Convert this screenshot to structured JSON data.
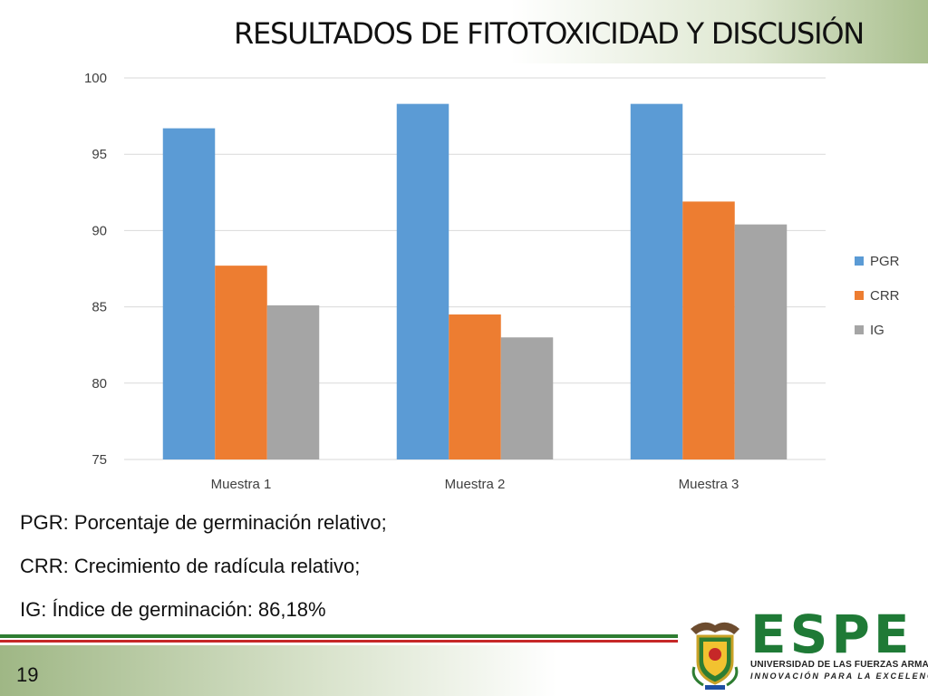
{
  "slide": {
    "title": "RESULTADOS DE FITOTOXICIDAD Y DISCUSIÓN",
    "page_number": "19"
  },
  "notes": [
    "PGR: Porcentaje de germinación relativo;",
    "CRR: Crecimiento de radícula relativo;",
    "IG: Índice de germinación: 86,18%"
  ],
  "logo": {
    "wordmark": "ESPE",
    "line1": "UNIVERSIDAD DE LAS FUERZAS ARMADAS",
    "line2": "INNOVACIÓN PARA LA EXCELENCIA",
    "brand_green": "#1f7a36"
  },
  "chart_data": {
    "type": "bar",
    "categories": [
      "Muestra 1",
      "Muestra 2",
      "Muestra 3"
    ],
    "series": [
      {
        "name": "PGR",
        "color": "#5b9bd5",
        "values": [
          96.7,
          98.3,
          98.3
        ]
      },
      {
        "name": "CRR",
        "color": "#ed7d31",
        "values": [
          87.7,
          84.5,
          91.9
        ]
      },
      {
        "name": "IG",
        "color": "#a5a5a5",
        "values": [
          85.1,
          83.0,
          90.4
        ]
      }
    ],
    "ylim": [
      75,
      100
    ],
    "yticks": [
      100,
      95,
      90,
      85,
      80,
      75
    ],
    "grid": true,
    "legend_position": "right"
  }
}
